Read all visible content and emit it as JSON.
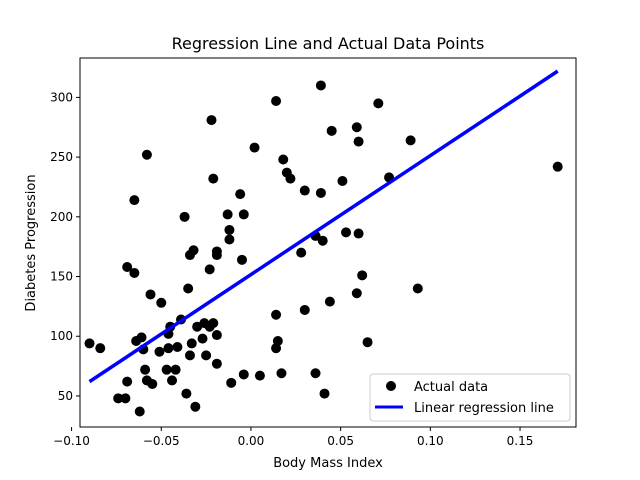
{
  "chart_data": {
    "type": "scatter",
    "title": "Regression Line and Actual Data Points",
    "xlabel": "Body Mass Index",
    "ylabel": "Diabetes Progression",
    "xlim": [
      -0.0953,
      0.1812
    ],
    "ylim": [
      24,
      333
    ],
    "xticks": [
      -0.1,
      -0.05,
      0.0,
      0.05,
      0.1,
      0.15
    ],
    "xtick_labels": [
      "−0.10",
      "−0.05",
      "0.00",
      "0.05",
      "0.10",
      "0.15"
    ],
    "yticks": [
      50,
      100,
      150,
      200,
      250,
      300
    ],
    "ytick_labels": [
      "50",
      "100",
      "150",
      "200",
      "250",
      "300"
    ],
    "grid": false,
    "legend_position": "lower-right",
    "series": [
      {
        "name": "Actual data",
        "kind": "scatter",
        "color": "#000000",
        "points": [
          [
            -0.09,
            94
          ],
          [
            -0.084,
            90
          ],
          [
            -0.074,
            48
          ],
          [
            -0.07,
            48
          ],
          [
            -0.069,
            62
          ],
          [
            -0.069,
            158
          ],
          [
            -0.065,
            214
          ],
          [
            -0.065,
            153
          ],
          [
            -0.064,
            96
          ],
          [
            -0.062,
            37
          ],
          [
            -0.061,
            99
          ],
          [
            -0.06,
            89
          ],
          [
            -0.059,
            72
          ],
          [
            -0.058,
            63
          ],
          [
            -0.058,
            252
          ],
          [
            -0.056,
            135
          ],
          [
            -0.055,
            60
          ],
          [
            -0.051,
            87
          ],
          [
            -0.05,
            128
          ],
          [
            -0.047,
            72
          ],
          [
            -0.046,
            90
          ],
          [
            -0.046,
            102
          ],
          [
            -0.045,
            108
          ],
          [
            -0.044,
            63
          ],
          [
            -0.042,
            72
          ],
          [
            -0.041,
            91
          ],
          [
            -0.039,
            114
          ],
          [
            -0.037,
            200
          ],
          [
            -0.036,
            52
          ],
          [
            -0.035,
            140
          ],
          [
            -0.034,
            84
          ],
          [
            -0.034,
            168
          ],
          [
            -0.033,
            94
          ],
          [
            -0.032,
            172
          ],
          [
            -0.031,
            41
          ],
          [
            -0.03,
            108
          ],
          [
            -0.027,
            98
          ],
          [
            -0.026,
            111
          ],
          [
            -0.025,
            84
          ],
          [
            -0.023,
            108
          ],
          [
            -0.023,
            156
          ],
          [
            -0.022,
            281
          ],
          [
            -0.021,
            111
          ],
          [
            -0.021,
            232
          ],
          [
            -0.019,
            168
          ],
          [
            -0.019,
            171
          ],
          [
            -0.019,
            77
          ],
          [
            -0.019,
            101
          ],
          [
            -0.013,
            202
          ],
          [
            -0.012,
            181
          ],
          [
            -0.012,
            189
          ],
          [
            -0.011,
            61
          ],
          [
            -0.006,
            219
          ],
          [
            -0.005,
            164
          ],
          [
            -0.004,
            202
          ],
          [
            -0.004,
            68
          ],
          [
            0.002,
            258
          ],
          [
            0.005,
            67
          ],
          [
            0.014,
            297
          ],
          [
            0.014,
            90
          ],
          [
            0.014,
            118
          ],
          [
            0.015,
            96
          ],
          [
            0.017,
            69
          ],
          [
            0.018,
            248
          ],
          [
            0.02,
            237
          ],
          [
            0.022,
            232
          ],
          [
            0.028,
            170
          ],
          [
            0.03,
            122
          ],
          [
            0.03,
            222
          ],
          [
            0.036,
            69
          ],
          [
            0.036,
            184
          ],
          [
            0.039,
            220
          ],
          [
            0.039,
            310
          ],
          [
            0.04,
            180
          ],
          [
            0.041,
            52
          ],
          [
            0.044,
            129
          ],
          [
            0.045,
            272
          ],
          [
            0.051,
            230
          ],
          [
            0.053,
            187
          ],
          [
            0.059,
            275
          ],
          [
            0.059,
            136
          ],
          [
            0.06,
            186
          ],
          [
            0.06,
            263
          ],
          [
            0.062,
            151
          ],
          [
            0.065,
            95
          ],
          [
            0.071,
            295
          ],
          [
            0.077,
            233
          ],
          [
            0.089,
            264
          ],
          [
            0.093,
            140
          ],
          [
            0.171,
            242
          ]
        ]
      },
      {
        "name": "Linear regression line",
        "kind": "line",
        "color": "#0000ff",
        "x": [
          -0.09,
          0.171
        ],
        "y": [
          62,
          322
        ]
      }
    ]
  }
}
